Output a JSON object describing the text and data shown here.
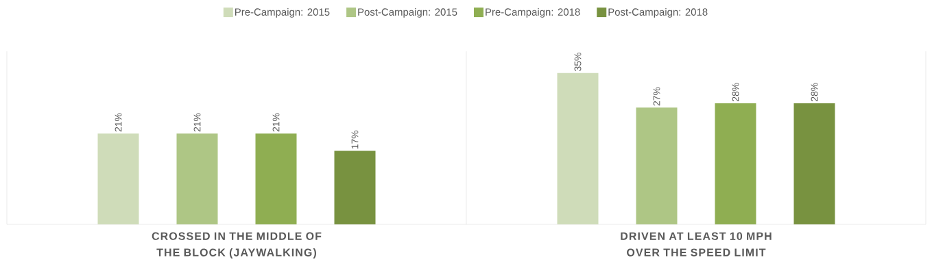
{
  "chart_data": {
    "type": "bar",
    "categories": [
      "CROSSED IN THE MIDDLE OF THE BLOCK (JAYWALKING)",
      "DRIVEN AT LEAST 10 MPH OVER THE SPEED LIMIT"
    ],
    "series": [
      {
        "name": "Pre-Campaign: 2015",
        "color": "#cfdcb9",
        "values": [
          21,
          35
        ],
        "value_labels": [
          "21%",
          "35%"
        ]
      },
      {
        "name": "Post-Campaign: 2015",
        "color": "#aec685",
        "values": [
          21,
          27
        ],
        "value_labels": [
          "21%",
          "27%"
        ]
      },
      {
        "name": "Pre-Campaign: 2018",
        "color": "#8fae52",
        "values": [
          21,
          28
        ],
        "value_labels": [
          "21%",
          "28%"
        ]
      },
      {
        "name": "Post-Campaign: 2018",
        "color": "#789240",
        "values": [
          17,
          28
        ],
        "value_labels": [
          "17%",
          "28%"
        ]
      }
    ],
    "ylim": [
      0,
      40
    ],
    "legend": "top"
  }
}
